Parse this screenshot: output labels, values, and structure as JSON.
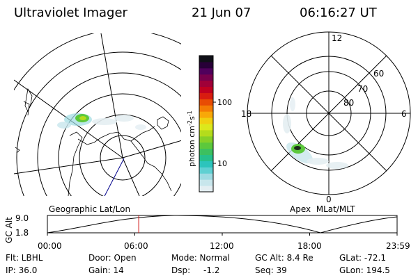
{
  "header": {
    "instrument": "Ultraviolet Imager",
    "date": "21 Jun 07",
    "time": "06:16:27 UT"
  },
  "left_panel": {
    "caption": "Geographic Lat/Lon"
  },
  "right_panel": {
    "caption": "Apex  MLat/MLT",
    "mlt_labels": [
      "12",
      "18",
      "6",
      "0"
    ],
    "mlat_labels": [
      "60",
      "70",
      "80"
    ]
  },
  "colorbar": {
    "unit_label": "photon cm",
    "exp1": "-2",
    "mid": "s",
    "exp2": "-1",
    "ticks": [
      "100",
      "10"
    ],
    "colors": [
      "#e4eef2",
      "#c8e6ec",
      "#9edbe2",
      "#5fd0d2",
      "#2cc4bc",
      "#26c08c",
      "#3cc060",
      "#5cc83c",
      "#86d028",
      "#b4dc1c",
      "#dce81c",
      "#f0d010",
      "#f8a808",
      "#f47c04",
      "#e84c04",
      "#d81c10",
      "#c00020",
      "#a00038",
      "#78004c",
      "#50005c",
      "#280038",
      "#101018"
    ]
  },
  "altitude_plot": {
    "ylabel": "GC Alt",
    "yticks": [
      "9.0",
      "1.8"
    ],
    "xticks": [
      "00:00",
      "06:00",
      "12:00",
      "18:00",
      "23:59"
    ],
    "marker_hour": 6.27
  },
  "footer": {
    "row1": [
      "Flt: LBHL",
      "Door: Open",
      "Mode: Normal",
      "GC Alt: 8.4 Re",
      "GLat: -72.1"
    ],
    "dsp_label": "Dsp:",
    "dsp_value": "-1.2",
    "row2": [
      "IP: 36.0",
      "Gain: 14",
      "Seq: 39",
      "GLon: 194.5"
    ]
  }
}
